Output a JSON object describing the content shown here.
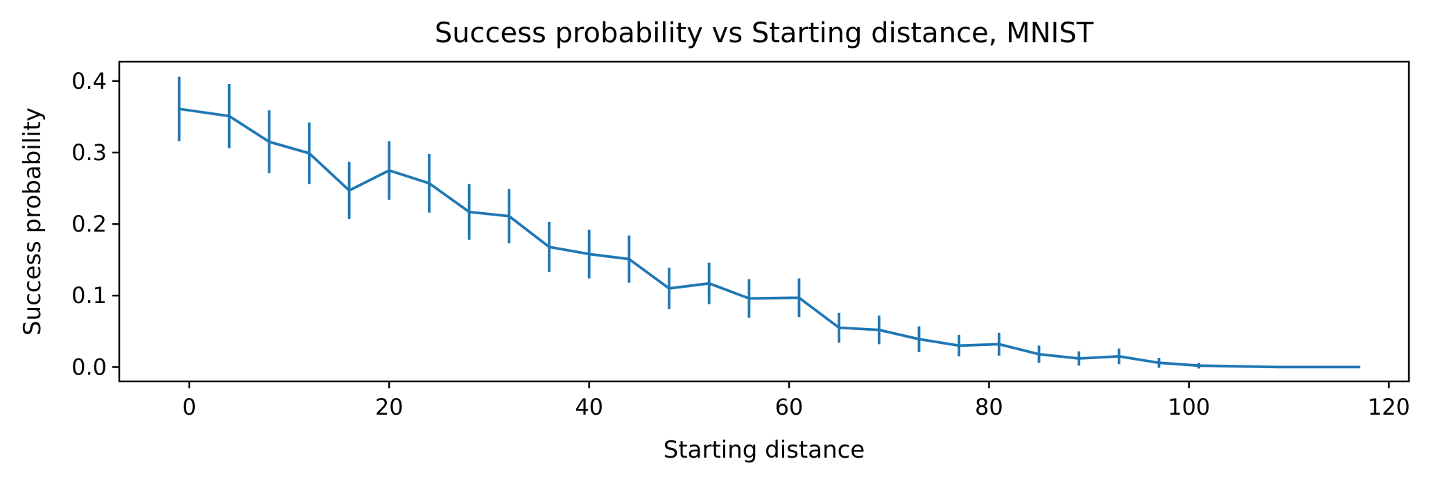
{
  "colors": {
    "series": "#1f77b4",
    "axes": "#000000",
    "background": "#ffffff"
  },
  "chart_data": {
    "type": "line",
    "title": "Success probability vs Starting distance, MNIST",
    "xlabel": "Starting distance",
    "ylabel": "Success probability",
    "xlim": [
      -7,
      122
    ],
    "ylim": [
      -0.02,
      0.427
    ],
    "xticks": [
      0,
      20,
      40,
      60,
      80,
      100,
      120
    ],
    "yticks": [
      0.0,
      0.1,
      0.2,
      0.3,
      0.4
    ],
    "xtick_labels": [
      "0",
      "20",
      "40",
      "60",
      "80",
      "100",
      "120"
    ],
    "ytick_labels": [
      "0.0",
      "0.1",
      "0.2",
      "0.3",
      "0.4"
    ],
    "grid": false,
    "legend": "none",
    "series": [
      {
        "x": [
          -1,
          4,
          8,
          12,
          16,
          20,
          24,
          28,
          32,
          36,
          40,
          44,
          48,
          52,
          56,
          61,
          65,
          69,
          73,
          77,
          81,
          85,
          89,
          93,
          97,
          101,
          109,
          117
        ],
        "y": [
          0.361,
          0.351,
          0.315,
          0.299,
          0.247,
          0.275,
          0.257,
          0.217,
          0.211,
          0.168,
          0.158,
          0.151,
          0.11,
          0.117,
          0.096,
          0.097,
          0.055,
          0.052,
          0.039,
          0.03,
          0.032,
          0.018,
          0.012,
          0.015,
          0.006,
          0.002,
          0.0,
          0.0
        ],
        "err": [
          0.045,
          0.045,
          0.044,
          0.043,
          0.04,
          0.041,
          0.041,
          0.039,
          0.038,
          0.035,
          0.034,
          0.033,
          0.029,
          0.029,
          0.027,
          0.027,
          0.021,
          0.02,
          0.018,
          0.015,
          0.016,
          0.012,
          0.01,
          0.011,
          0.007,
          0.004,
          0.0,
          0.0
        ]
      }
    ]
  }
}
